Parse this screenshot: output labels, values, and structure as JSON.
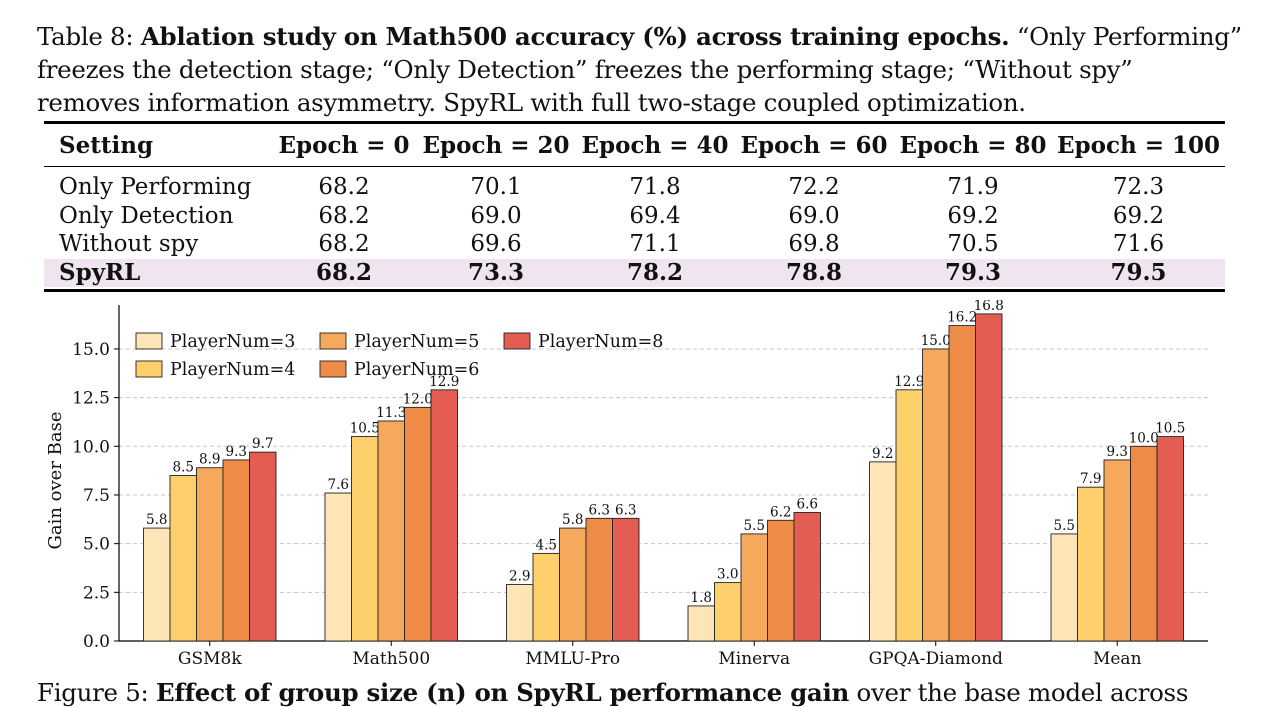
{
  "table_caption": {
    "label": "Table 8:",
    "title": "Ablation study on Math500 accuracy (%) across training epochs.",
    "line1_rest": "“Only Performing”",
    "line2": "freezes the detection stage; “Only Detection” freezes the performing stage; “Without spy”",
    "line3": "removes information asymmetry. SpyRL with full two-stage coupled optimization."
  },
  "table": {
    "headers": [
      "Setting",
      "Epoch = 0",
      "Epoch = 20",
      "Epoch = 40",
      "Epoch = 60",
      "Epoch = 80",
      "Epoch = 100"
    ],
    "rows": [
      [
        "Only Performing",
        "68.2",
        "70.1",
        "71.8",
        "72.2",
        "71.9",
        "72.3"
      ],
      [
        "Only Detection",
        "68.2",
        "69.0",
        "69.4",
        "69.0",
        "69.2",
        "69.2"
      ],
      [
        "Without spy",
        "68.2",
        "69.6",
        "71.1",
        "69.8",
        "70.5",
        "71.6"
      ],
      [
        "SpyRL",
        "68.2",
        "73.3",
        "78.2",
        "78.8",
        "79.3",
        "79.5"
      ]
    ],
    "highlight_color": "#f1e4f1"
  },
  "chart_data": {
    "type": "bar",
    "ylabel": "Gain over Base",
    "ylim": [
      0,
      17
    ],
    "yticks": [
      "0.0",
      "2.5",
      "5.0",
      "7.5",
      "10.0",
      "12.5",
      "15.0"
    ],
    "ytick_values": [
      0,
      2.5,
      5,
      7.5,
      10,
      12.5,
      15
    ],
    "grid": true,
    "legend_position": "top-left",
    "categories": [
      "GSM8k",
      "Math500",
      "MMLU-Pro",
      "Minerva",
      "GPQA-Diamond",
      "Mean"
    ],
    "series": [
      {
        "name": "PlayerNum=3",
        "color": "#fde5b8",
        "values": [
          5.8,
          7.6,
          2.9,
          1.8,
          9.2,
          5.5
        ]
      },
      {
        "name": "PlayerNum=4",
        "color": "#fdd06c",
        "values": [
          8.5,
          10.5,
          4.5,
          3.0,
          12.9,
          7.9
        ]
      },
      {
        "name": "PlayerNum=5",
        "color": "#f6a95b",
        "values": [
          8.9,
          11.3,
          5.8,
          5.5,
          15.0,
          9.3
        ]
      },
      {
        "name": "PlayerNum=6",
        "color": "#ee8b47",
        "values": [
          9.3,
          12.0,
          6.3,
          6.2,
          16.2,
          10.0
        ]
      },
      {
        "name": "PlayerNum=8",
        "color": "#e45d52",
        "values": [
          9.7,
          12.9,
          6.3,
          6.6,
          16.8,
          10.5
        ]
      }
    ]
  },
  "figure_caption": {
    "label": "Figure 5:",
    "title": "Effect of group size (n) on SpyRL performance gain",
    "rest": "over the base model across"
  }
}
